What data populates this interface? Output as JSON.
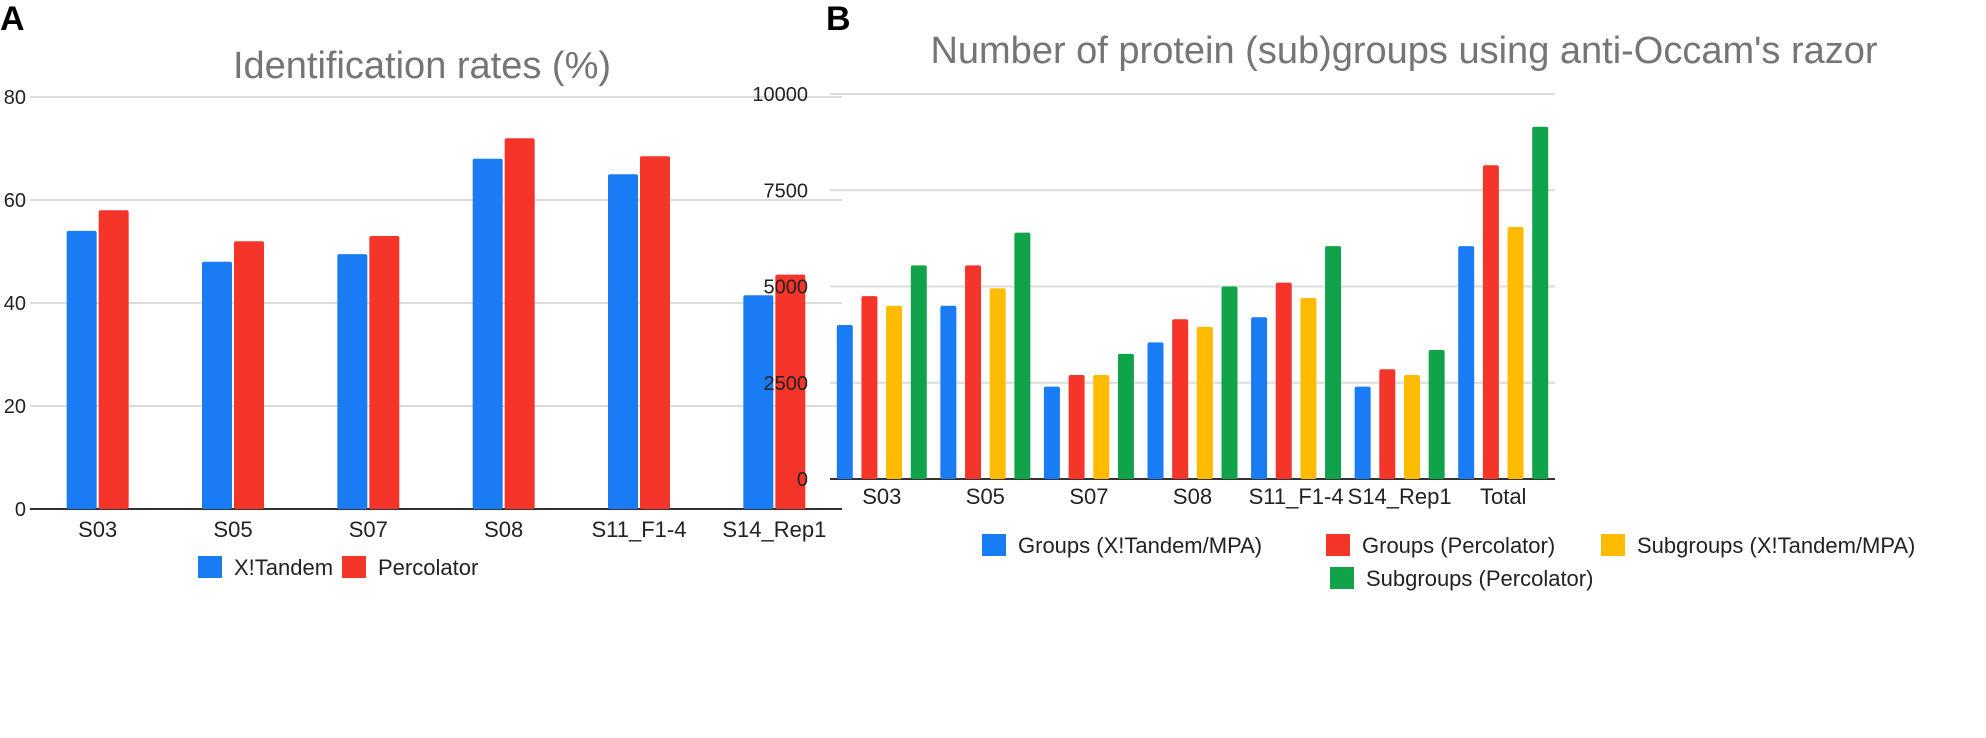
{
  "panels": {
    "a_label": "A",
    "b_label": "B"
  },
  "chart_data": [
    {
      "type": "bar",
      "title": "Identification rates (%)",
      "xlabel": "",
      "ylabel": "",
      "ylim": [
        0,
        80
      ],
      "yticks": [
        "0",
        "20",
        "40",
        "60",
        "80"
      ],
      "ytick_values": [
        0,
        20,
        40,
        60,
        80
      ],
      "categories": [
        "S03",
        "S05",
        "S07",
        "S08",
        "S11_F1-4",
        "S14_Rep1"
      ],
      "series": [
        {
          "name": "X!Tandem",
          "color": "#1a7cf5",
          "values": [
            54,
            48,
            49.5,
            68,
            65,
            41.5
          ]
        },
        {
          "name": "Percolator",
          "color": "#f5352a",
          "values": [
            58,
            52,
            53,
            72,
            68.5,
            45.5
          ]
        }
      ],
      "grid": true,
      "legend": "bottom"
    },
    {
      "type": "bar",
      "title": "Number of protein (sub)groups using anti-Occam's razor",
      "xlabel": "",
      "ylabel": "",
      "ylim": [
        0,
        10000
      ],
      "yticks": [
        "0",
        "2500",
        "5000",
        "7500",
        "10000"
      ],
      "ytick_values": [
        0,
        2500,
        5000,
        7500,
        10000
      ],
      "categories": [
        "S03",
        "S05",
        "S07",
        "S08",
        "S11_F1-4",
        "S14_Rep1",
        "Total"
      ],
      "series": [
        {
          "name": "Groups (X!Tandem/MPA)",
          "color": "#1a7cf5",
          "values": [
            4000,
            4500,
            2400,
            3550,
            4200,
            2400,
            6050
          ]
        },
        {
          "name": "Groups (Percolator)",
          "color": "#f5352a",
          "values": [
            4750,
            5550,
            2700,
            4150,
            5100,
            2850,
            8150
          ]
        },
        {
          "name": "Subgroups (X!Tandem/MPA)",
          "color": "#ffbb00",
          "values": [
            4500,
            4950,
            2700,
            3950,
            4700,
            2700,
            6550
          ]
        },
        {
          "name": "Subgroups (Percolator)",
          "color": "#11a34a",
          "values": [
            5550,
            6400,
            3250,
            5000,
            6050,
            3350,
            9150
          ]
        }
      ],
      "grid": true,
      "legend": "bottom"
    }
  ]
}
